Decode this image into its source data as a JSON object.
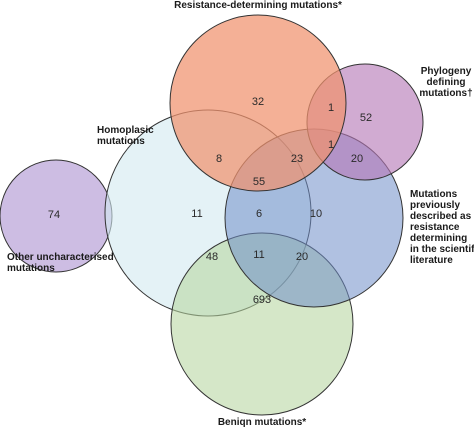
{
  "sets": [
    {
      "key": "resistance",
      "label_lines": [
        "Resistance-determining mutations*"
      ],
      "color": "#f0926d",
      "opacity": 0.72
    },
    {
      "key": "phylogeny",
      "label_lines": [
        "Phylogeny",
        "defining",
        "mutations†"
      ],
      "color": "#b478b6",
      "opacity": 0.62
    },
    {
      "key": "homoplasic",
      "label_lines": [
        "Homoplasic",
        "mutations"
      ],
      "color": "#d2e9f0",
      "opacity": 0.6
    },
    {
      "key": "literature",
      "label_lines": [
        "Mutations",
        "previously",
        "described as",
        "resistance",
        "determining",
        "in the scientific",
        "literature"
      ],
      "color": "#6f8ec8",
      "opacity": 0.55
    },
    {
      "key": "benign",
      "label_lines": [
        "Beniqn mutations*"
      ],
      "color": "#b7d6a0",
      "opacity": 0.58
    },
    {
      "key": "other",
      "label_lines": [
        "Other uncharacterised",
        "mutations"
      ],
      "color": "#c8b6e0",
      "opacity": 0.9
    }
  ],
  "region_counts": [
    {
      "value": "32"
    },
    {
      "value": "1"
    },
    {
      "value": "52"
    },
    {
      "value": "1"
    },
    {
      "value": "8"
    },
    {
      "value": "23"
    },
    {
      "value": "20"
    },
    {
      "value": "55"
    },
    {
      "value": "74"
    },
    {
      "value": "11"
    },
    {
      "value": "6"
    },
    {
      "value": "10"
    },
    {
      "value": "11"
    },
    {
      "value": "48"
    },
    {
      "value": "20"
    },
    {
      "value": "693"
    }
  ]
}
